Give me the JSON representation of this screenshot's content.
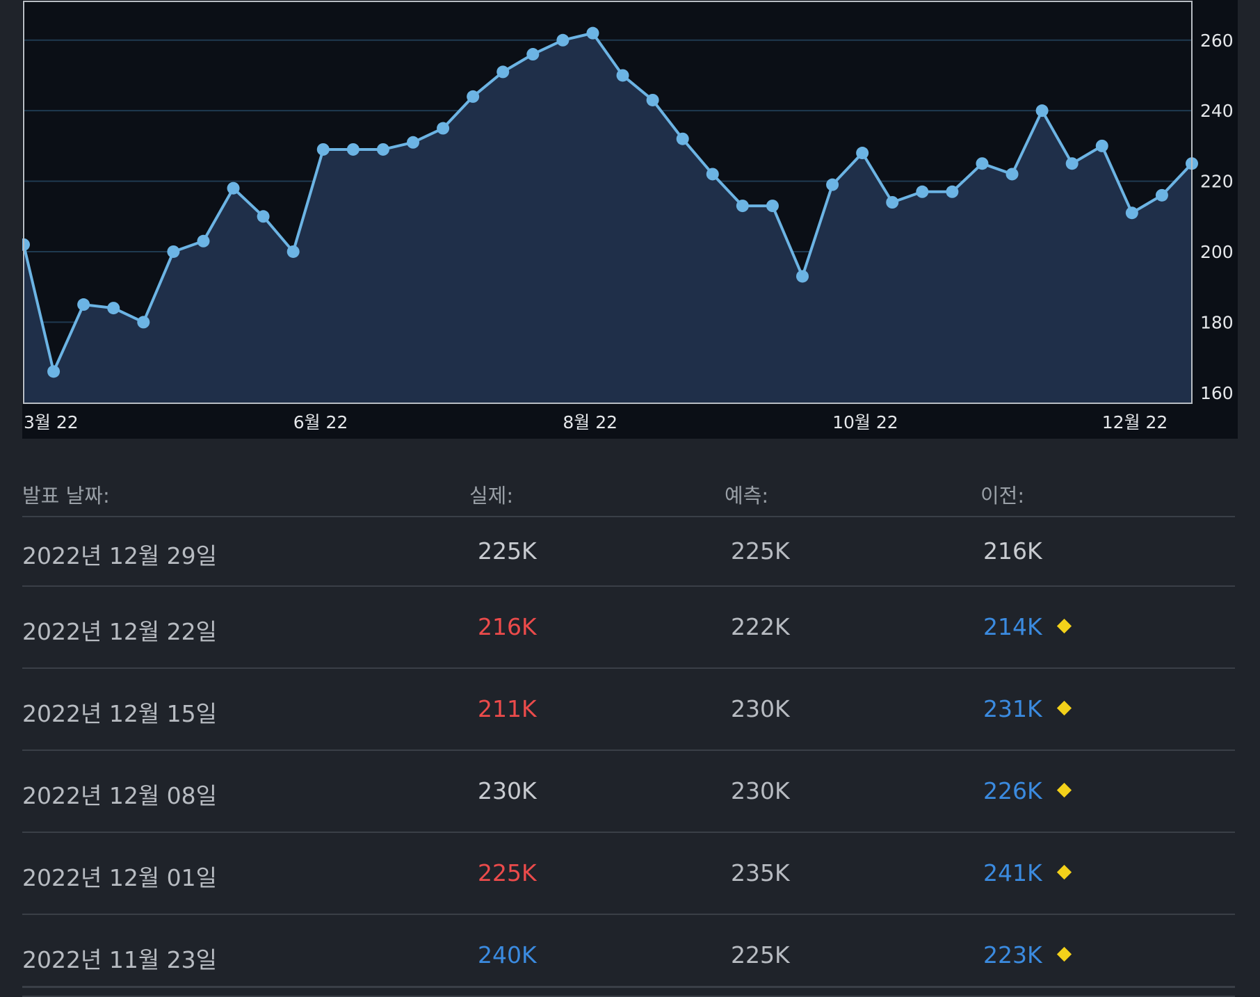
{
  "chart_data": {
    "type": "area",
    "x_ticks": [
      "3월 22",
      "6월 22",
      "8월 22",
      "10월 22",
      "12월 22"
    ],
    "y_ticks": [
      160,
      180,
      200,
      220,
      240,
      260
    ],
    "ylim": [
      157,
      271
    ],
    "values": [
      202,
      166,
      185,
      184,
      180,
      200,
      203,
      218,
      210,
      200,
      229,
      229,
      229,
      231,
      235,
      244,
      251,
      256,
      260,
      262,
      250,
      243,
      232,
      222,
      213,
      213,
      193,
      219,
      228,
      214,
      217,
      217,
      225,
      222,
      240,
      225,
      230,
      211,
      216,
      225
    ],
    "grid": true,
    "line_color": "#6cb4e4",
    "fill_color": "#1f2f49",
    "grid_color": "#1f3a50"
  },
  "table": {
    "headers": {
      "date": "발표 날짜:",
      "actual": "실제:",
      "forecast": "예측:",
      "previous": "이전:"
    },
    "rows": [
      {
        "date": "2022년 12월 29일",
        "actual": "225K",
        "actual_status": "neutral",
        "forecast": "225K",
        "previous": "216K",
        "previous_status": "neutral",
        "revised": false
      },
      {
        "date": "2022년 12월 22일",
        "actual": "216K",
        "actual_status": "neg",
        "forecast": "222K",
        "previous": "214K",
        "previous_status": "pos",
        "revised": true
      },
      {
        "date": "2022년 12월 15일",
        "actual": "211K",
        "actual_status": "neg",
        "forecast": "230K",
        "previous": "231K",
        "previous_status": "pos",
        "revised": true
      },
      {
        "date": "2022년 12월 08일",
        "actual": "230K",
        "actual_status": "neutral",
        "forecast": "230K",
        "previous": "226K",
        "previous_status": "pos",
        "revised": true
      },
      {
        "date": "2022년 12월 01일",
        "actual": "225K",
        "actual_status": "neg",
        "forecast": "235K",
        "previous": "241K",
        "previous_status": "pos",
        "revised": true
      },
      {
        "date": "2022년 11월 23일",
        "actual": "240K",
        "actual_status": "pos",
        "forecast": "225K",
        "previous": "223K",
        "previous_status": "pos",
        "revised": true
      }
    ],
    "colors": {
      "neutral": "#c9ccd1",
      "neg": "#ec4b4b",
      "pos": "#3b8be0",
      "revised_icon": "#f3d11a"
    },
    "revised_icon": "diamond-icon"
  }
}
